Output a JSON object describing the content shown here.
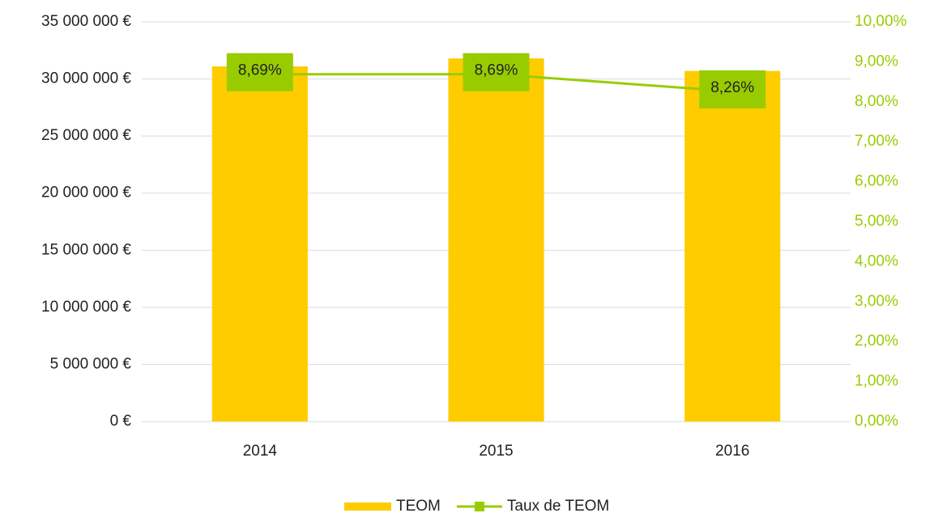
{
  "chart_data": {
    "type": "bar",
    "categories": [
      "2014",
      "2015",
      "2016"
    ],
    "series": [
      {
        "name": "TEOM",
        "color": "#ffcc00",
        "values": [
          31100000,
          31800000,
          30700000
        ]
      },
      {
        "name": "Taux de TEOM",
        "color": "#99cc00",
        "axis": "y2",
        "values": [
          8.69,
          8.69,
          8.26
        ],
        "value_labels": [
          "8,69%",
          "8,69%",
          "8,26%"
        ]
      }
    ],
    "ylim": [
      0,
      35000000
    ],
    "yticks": [
      {
        "value": 0,
        "label": "0 €"
      },
      {
        "value": 5000000,
        "label": "5 000 000 €"
      },
      {
        "value": 10000000,
        "label": "10 000 000 €"
      },
      {
        "value": 15000000,
        "label": "15 000 000 €"
      },
      {
        "value": 20000000,
        "label": "20 000 000 €"
      },
      {
        "value": 25000000,
        "label": "25 000 000 €"
      },
      {
        "value": 30000000,
        "label": "30 000 000 €"
      },
      {
        "value": 35000000,
        "label": "35 000 000 €"
      }
    ],
    "y2lim": [
      0,
      10
    ],
    "y2ticks": [
      {
        "value": 0,
        "label": "0,00%"
      },
      {
        "value": 1,
        "label": "1,00%"
      },
      {
        "value": 2,
        "label": "2,00%"
      },
      {
        "value": 3,
        "label": "3,00%"
      },
      {
        "value": 4,
        "label": "4,00%"
      },
      {
        "value": 5,
        "label": "5,00%"
      },
      {
        "value": 6,
        "label": "6,00%"
      },
      {
        "value": 7,
        "label": "7,00%"
      },
      {
        "value": 8,
        "label": "8,00%"
      },
      {
        "value": 9,
        "label": "9,00%"
      },
      {
        "value": 10,
        "label": "10,00%"
      }
    ],
    "grid": true,
    "legend": "bottom"
  }
}
